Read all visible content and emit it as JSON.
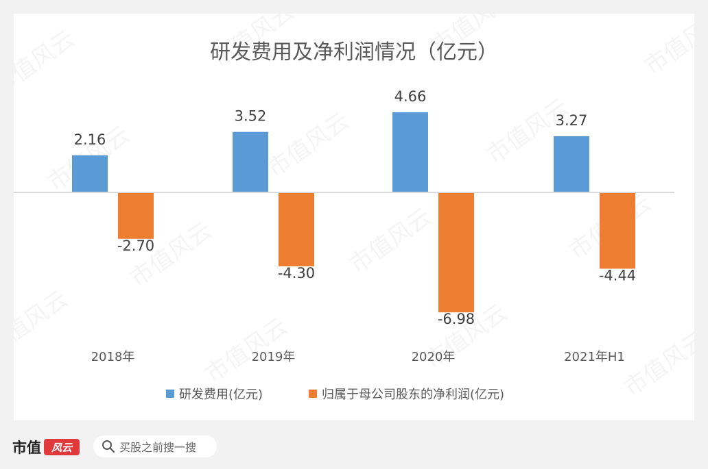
{
  "chart_data": {
    "type": "bar",
    "title": "研发费用及净利润情况（亿元）",
    "categories": [
      "2018年",
      "2019年",
      "2020年",
      "2021年H1"
    ],
    "series": [
      {
        "name": "研发费用(亿元)",
        "values": [
          2.16,
          3.52,
          4.66,
          3.27
        ],
        "labels": [
          "2.16",
          "3.52",
          "4.66",
          "3.27"
        ],
        "color": "#5b9bd5"
      },
      {
        "name": "归属于母公司股东的净利润(亿元)",
        "values": [
          -2.7,
          -4.3,
          -6.98,
          -4.44
        ],
        "labels": [
          "-2.70",
          "-4.30",
          "-6.98",
          "-4.44"
        ],
        "color": "#ed7d31"
      }
    ],
    "ylim": [
      -6.98,
      4.66
    ],
    "grid": false,
    "legend": "bottom"
  },
  "watermark": "市值风云",
  "footer": {
    "brand": "市值",
    "brand_seal": "风云",
    "search_placeholder": "买股之前搜一搜"
  }
}
